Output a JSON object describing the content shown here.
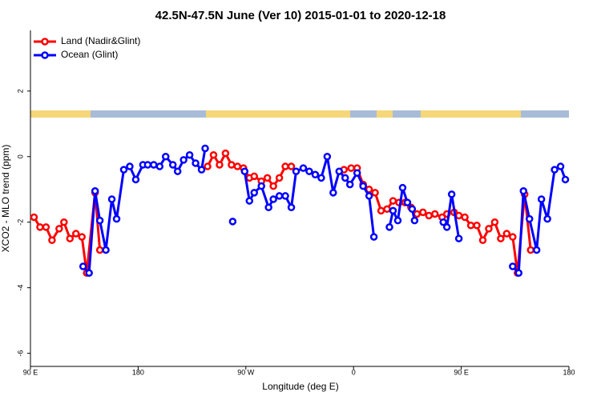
{
  "chart_data": {
    "type": "line",
    "title": "42.5N-47.5N June (Ver 10)   2015-01-01 to 2020-12-18",
    "x_label": "Longitude (deg E)",
    "y_label": "XCO2 - MLO trend (ppm)",
    "xlim": [
      90,
      540
    ],
    "xticks": [
      {
        "value": 90,
        "label": "90 E"
      },
      180,
      {
        "value": 270,
        "label": "90 W"
      },
      {
        "value": 360,
        "label": "0"
      },
      {
        "value": 450,
        "label": "90 E"
      },
      180
    ],
    "ylim": [
      -6.4,
      3.85
    ],
    "yticks": [
      -6,
      -4,
      -2,
      0,
      2
    ],
    "legend": "top-left",
    "series": [
      {
        "name": "Land (Nadir&Glint)",
        "color": "#ff0000",
        "x": [
          93,
          98,
          103,
          108,
          114,
          118,
          123,
          128,
          133,
          137,
          144,
          148,
          null,
          238,
          243,
          248,
          253,
          258,
          263,
          268,
          273,
          277,
          283,
          288,
          293,
          298,
          303,
          308,
          null,
          352,
          358,
          363,
          368,
          373,
          378,
          383,
          388,
          393,
          398,
          403,
          408,
          413,
          418,
          423,
          428,
          434,
          438,
          444,
          448,
          453,
          458,
          463,
          468,
          473,
          478,
          483,
          488,
          493,
          497,
          503,
          508
        ],
        "values": [
          -1.85,
          -2.15,
          -2.15,
          -2.55,
          -2.2,
          -2.0,
          -2.5,
          -2.35,
          -2.45,
          -3.55,
          -1.1,
          -2.85,
          null,
          -0.3,
          0.05,
          -0.25,
          0.1,
          -0.25,
          -0.3,
          -0.35,
          -0.65,
          -0.6,
          -0.75,
          -0.65,
          -0.9,
          -0.65,
          -0.3,
          -0.3,
          null,
          -0.4,
          -0.35,
          -0.35,
          -0.85,
          -1.0,
          -1.1,
          -1.65,
          -1.6,
          -1.35,
          -1.4,
          -1.4,
          -1.55,
          -1.75,
          -1.7,
          -1.8,
          -1.75,
          -1.85,
          -1.75,
          -1.7,
          -1.8,
          -1.85,
          -2.1,
          -2.1,
          -2.55,
          -2.2,
          -2.0,
          -2.5,
          -2.35,
          -2.45,
          -3.55,
          -1.15,
          -2.85
        ]
      },
      {
        "name": "Ocean (Glint)",
        "color": "#0000ff",
        "x": [
          134,
          139,
          144,
          148,
          153,
          158,
          162,
          168,
          173,
          178,
          184,
          188,
          193,
          198,
          203,
          209,
          213,
          218,
          223,
          228,
          233,
          236,
          null,
          259,
          null,
          269,
          273,
          277,
          283,
          289,
          293,
          298,
          303,
          308,
          312,
          318,
          323,
          328,
          333,
          338,
          343,
          348,
          353,
          357,
          363,
          368,
          373,
          377,
          null,
          390,
          393,
          397,
          401,
          405,
          409,
          411,
          null,
          435,
          438,
          442,
          448,
          null,
          493,
          498,
          502,
          507,
          513,
          517,
          522,
          528,
          533,
          537
        ],
        "values": [
          -3.35,
          -3.55,
          -1.05,
          -1.95,
          -2.85,
          -1.3,
          -1.9,
          -0.4,
          -0.3,
          -0.7,
          -0.25,
          -0.25,
          -0.25,
          -0.3,
          0.0,
          -0.25,
          -0.45,
          -0.1,
          0.05,
          -0.2,
          -0.4,
          0.25,
          null,
          -1.98,
          null,
          -0.45,
          -1.35,
          -1.1,
          -0.9,
          -1.55,
          -1.3,
          -1.2,
          -1.2,
          -1.55,
          -0.45,
          -0.35,
          -0.45,
          -0.55,
          -0.65,
          0.0,
          -1.1,
          -0.45,
          -0.65,
          -0.85,
          -0.5,
          -0.9,
          -1.2,
          -2.45,
          null,
          -2.15,
          -1.65,
          -1.95,
          -0.95,
          -1.4,
          -1.6,
          -1.95,
          null,
          -2.0,
          -2.15,
          -1.15,
          -2.5,
          null,
          -3.35,
          -3.55,
          -1.05,
          -1.9,
          -2.85,
          -1.3,
          -1.9,
          -0.4,
          -0.3,
          -0.7
        ]
      }
    ]
  }
}
